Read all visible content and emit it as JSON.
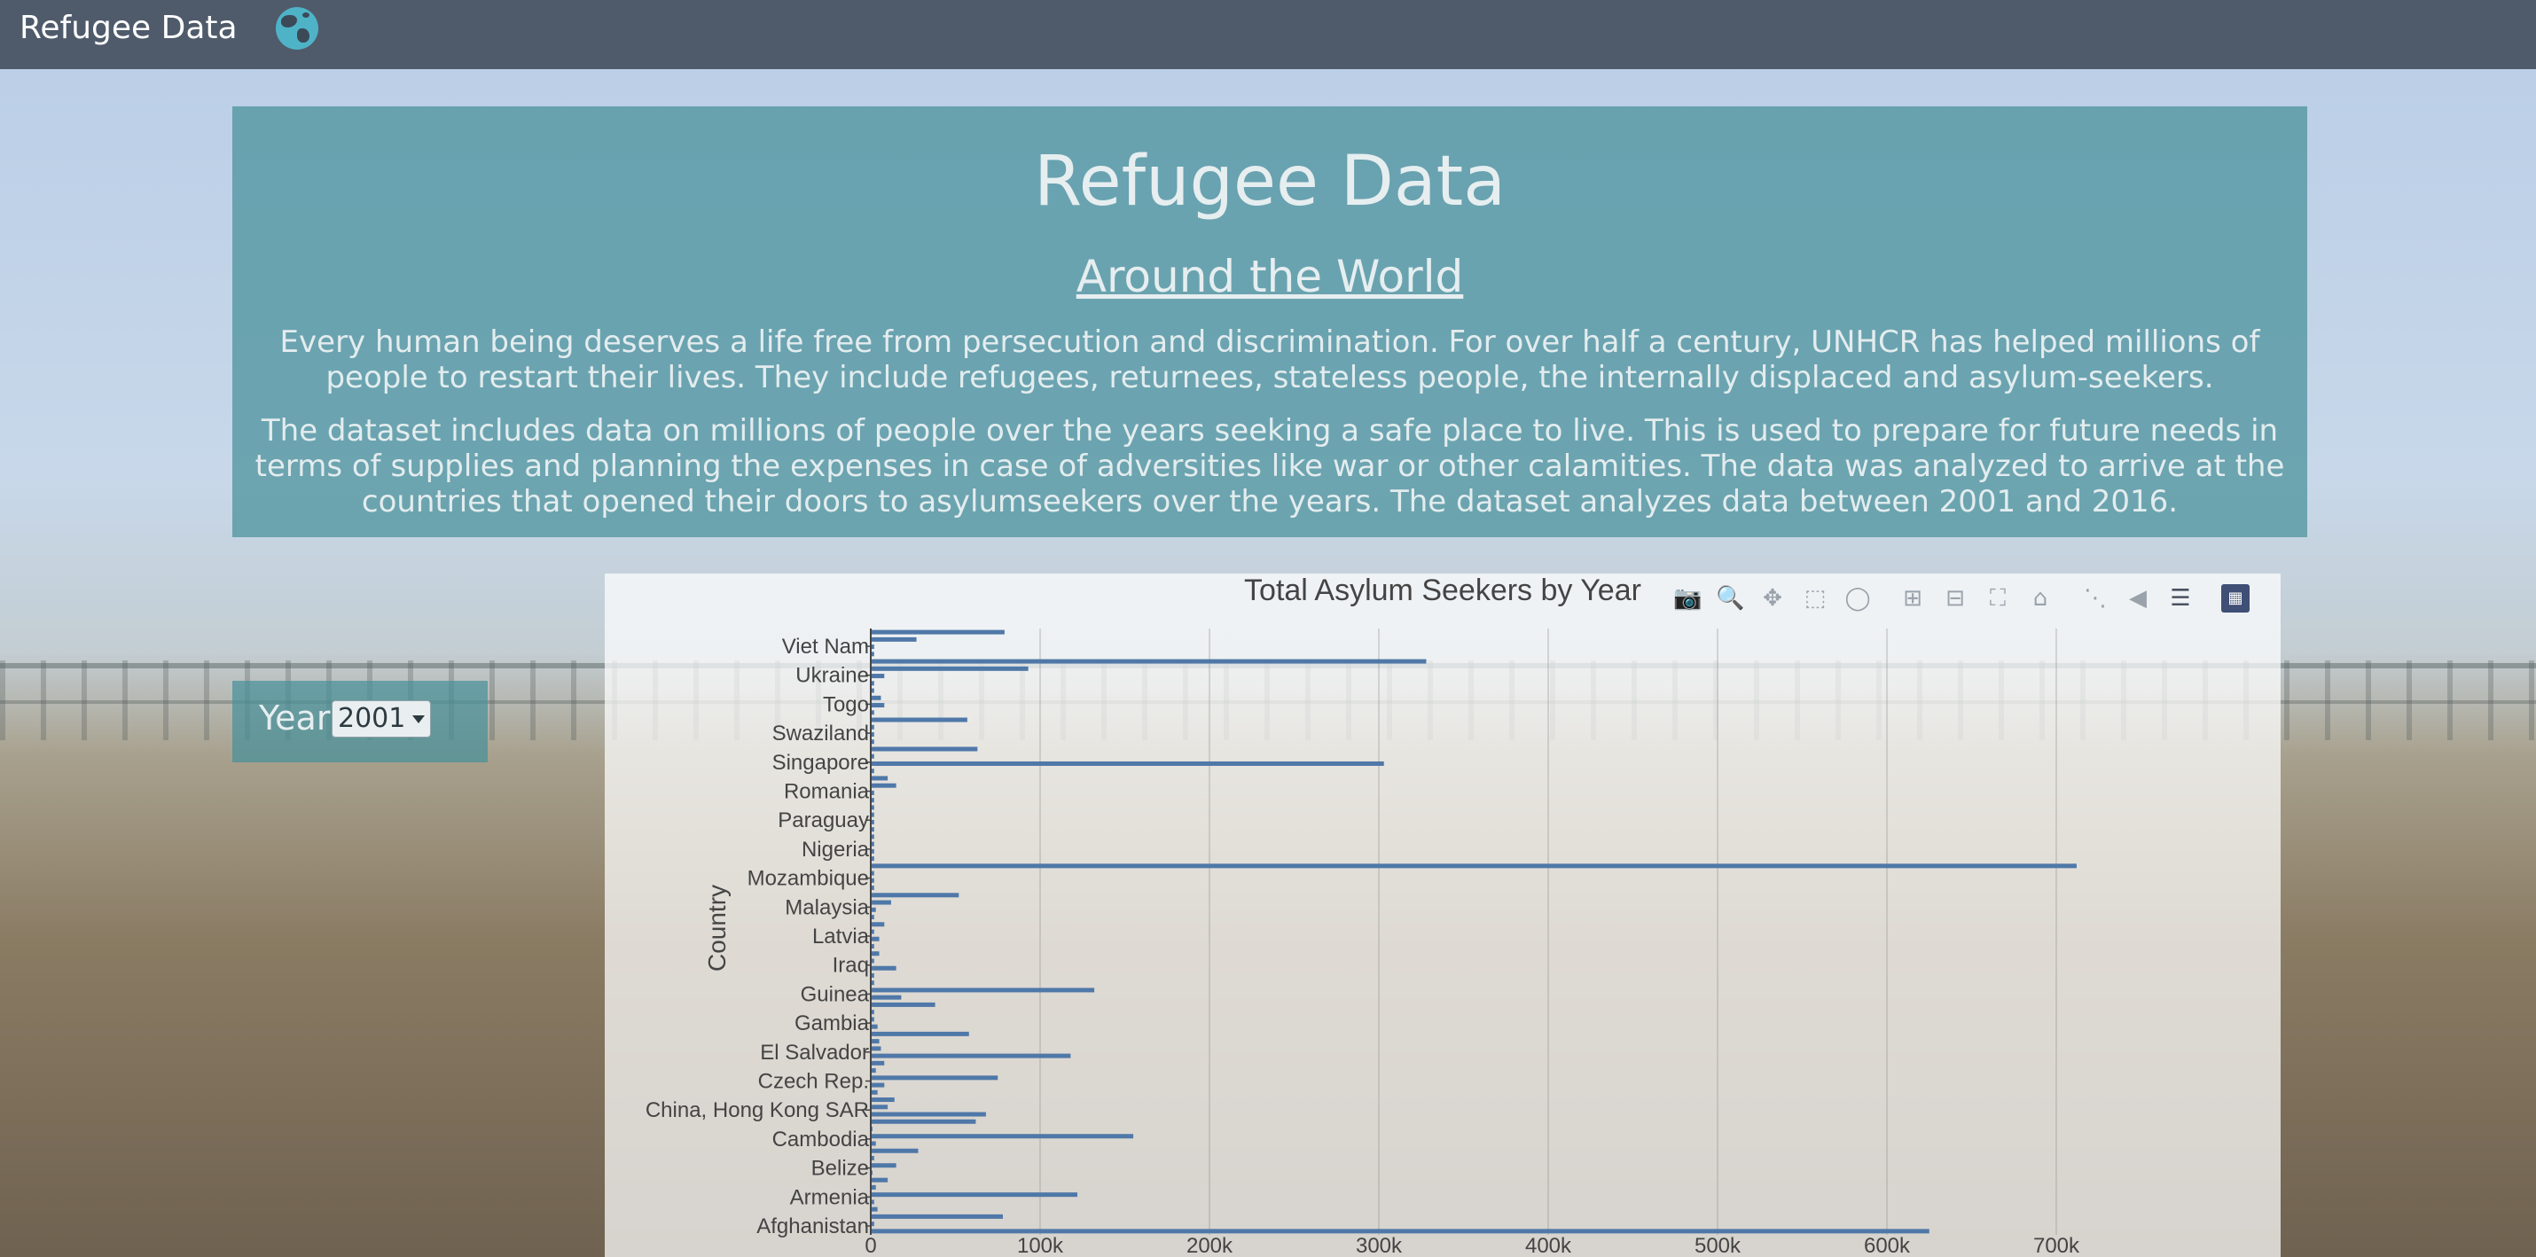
{
  "navbar": {
    "brand": "Refugee Data",
    "icon": "globe-icon"
  },
  "hero": {
    "title": "Refugee Data",
    "subtitle": "Around the World",
    "paragraph1": "Every human being deserves a life free from persecution and discrimination. For over half a century, UNHCR has helped millions of people to restart their lives. They include refugees, returnees, stateless people, the internally displaced and asylum-seekers.",
    "paragraph2": "The dataset includes data on millions of people over the years seeking a safe place to live. This is used to prepare for future needs in terms of supplies and planning the expenses in case of adversities like war or other calamities. The data was analyzed to arrive at the countries that opened their doors to asylumseekers over the years. The dataset analyzes data between 2001 and 2016."
  },
  "year_filter": {
    "label": "Year",
    "selected": "2001"
  },
  "modebar": [
    "camera-icon",
    "zoom-icon",
    "pan-icon",
    "box-select-icon",
    "lasso-icon",
    "zoom-in-icon",
    "zoom-out-icon",
    "autoscale-icon",
    "reset-axes-icon",
    "spike-lines-icon",
    "hover-closest-icon",
    "hover-compare-icon",
    "plotly-logo-icon"
  ],
  "colors": {
    "bar": "#4f78a8",
    "navbar": "#4f5b6b",
    "hero": "#48909a"
  },
  "chart_data": {
    "type": "bar",
    "orientation": "horizontal",
    "title": "Total Asylum Seekers by Year",
    "xlabel": "",
    "ylabel": "Country",
    "xlim": [
      0,
      740000
    ],
    "x_tick_labels": [
      "0",
      "100k",
      "200k",
      "300k",
      "400k",
      "500k",
      "600k",
      "700k"
    ],
    "x_tick_values": [
      0,
      100000,
      200000,
      300000,
      400000,
      500000,
      600000,
      700000
    ],
    "y_tick_labels": [
      "Viet Nam",
      "Ukraine",
      "Togo",
      "Swaziland",
      "Singapore",
      "Romania",
      "Paraguay",
      "Nigeria",
      "Mozambique",
      "Malaysia",
      "Latvia",
      "Iraq",
      "Guinea",
      "Gambia",
      "El Salvador",
      "Czech Rep.",
      "China, Hong Kong SAR",
      "Cambodia",
      "Belize",
      "Armenia",
      "Afghanistan"
    ],
    "grid": true,
    "series": [
      {
        "values": [
          625000,
          2000,
          78000,
          4000,
          2000,
          122000,
          3000,
          10000,
          1000,
          15000,
          2000,
          28000,
          3000,
          155000,
          1000,
          62000,
          68000,
          10000,
          14000,
          4000,
          8000,
          75000,
          3000,
          8000,
          118000,
          6000,
          5000,
          58000,
          4000,
          2000,
          2000,
          38000,
          18000,
          132000,
          2000,
          2000,
          15000,
          2000,
          5000,
          2000,
          5000,
          2000,
          8000,
          2000,
          3000,
          12000,
          52000,
          2000,
          2000,
          2000,
          712000,
          2000,
          2000,
          2000,
          2000,
          2000,
          2000,
          2000,
          2000,
          2000,
          2000,
          15000,
          10000,
          2000,
          303000,
          2000,
          63000,
          2000,
          2000,
          2000,
          57000,
          2000,
          8000,
          6000,
          2000,
          2000,
          8000,
          93000,
          328000,
          2000,
          2000,
          27000,
          79000
        ]
      }
    ]
  }
}
